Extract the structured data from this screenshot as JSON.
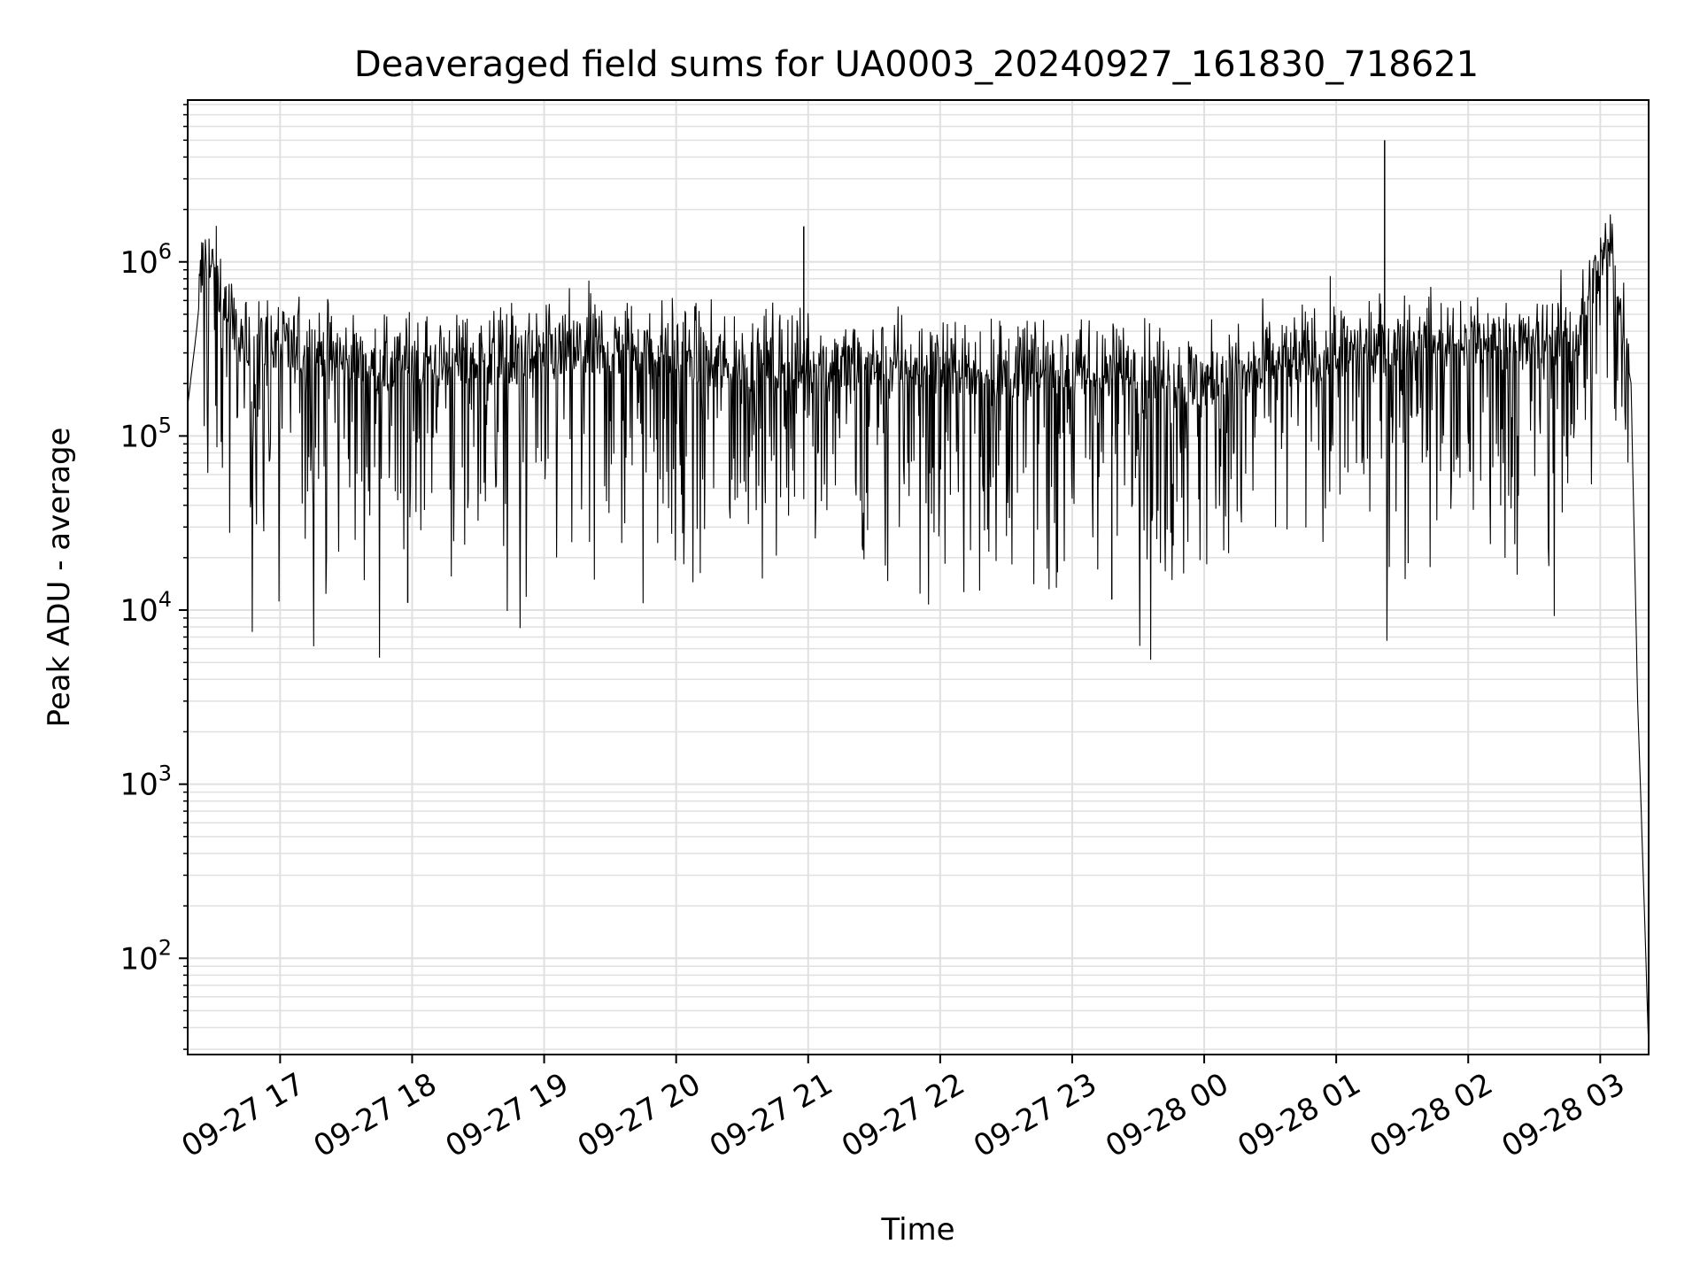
{
  "chart_data": {
    "type": "line",
    "title": "Deaveraged field sums for UA0003_20240927_161830_718621",
    "xlabel": "Time",
    "ylabel": "Peak ADU - average",
    "yscale": "log",
    "xlim": [
      "2024-09-27 16:18",
      "2024-09-28 03:22"
    ],
    "ylim": [
      28,
      8500000
    ],
    "grid": true,
    "line_color": "#000000",
    "grid_color": "#e0e0e0",
    "x_ticks": [
      "09-27 17",
      "09-27 18",
      "09-27 19",
      "09-27 20",
      "09-27 21",
      "09-27 22",
      "09-27 23",
      "09-28 00",
      "09-28 01",
      "09-28 02",
      "09-28 03"
    ],
    "y_ticks": [
      {
        "base": "10",
        "exp": "2"
      },
      {
        "base": "10",
        "exp": "3"
      },
      {
        "base": "10",
        "exp": "4"
      },
      {
        "base": "10",
        "exp": "5"
      },
      {
        "base": "10",
        "exp": "6"
      }
    ],
    "series": [
      {
        "x": [
          "2024-09-27 16:18",
          "2024-09-27 16:22",
          "2024-09-27 16:25",
          "2024-09-27 16:30",
          "2024-09-27 16:35",
          "2024-09-27 16:40",
          "2024-09-27 16:45",
          "2024-09-27 16:50",
          "2024-09-27 17:00",
          "2024-09-27 17:15",
          "2024-09-27 17:30",
          "2024-09-27 17:45",
          "2024-09-27 18:00",
          "2024-09-27 18:30",
          "2024-09-27 19:00",
          "2024-09-27 19:30",
          "2024-09-27 20:00",
          "2024-09-27 20:30",
          "2024-09-27 21:00",
          "2024-09-27 21:30",
          "2024-09-27 22:00",
          "2024-09-27 22:30",
          "2024-09-27 23:00",
          "2024-09-27 23:30",
          "2024-09-28 00:00",
          "2024-09-28 00:30",
          "2024-09-28 01:00",
          "2024-09-28 01:30",
          "2024-09-28 02:00",
          "2024-09-28 02:30",
          "2024-09-28 02:50",
          "2024-09-28 03:00",
          "2024-09-28 03:05",
          "2024-09-28 03:10",
          "2024-09-28 03:14",
          "2024-09-28 03:17",
          "2024-09-28 03:20",
          "2024-09-28 03:22"
        ],
        "y": [
          150000,
          400000,
          1000000,
          800000,
          500000,
          350000,
          280000,
          300000,
          300000,
          280000,
          250000,
          230000,
          240000,
          250000,
          260000,
          300000,
          260000,
          230000,
          240000,
          230000,
          220000,
          210000,
          220000,
          210000,
          190000,
          230000,
          280000,
          300000,
          320000,
          300000,
          350000,
          900000,
          1200000,
          400000,
          200000,
          3000,
          200,
          30
        ]
      }
    ],
    "spikes": [
      {
        "x": "2024-09-27 20:58",
        "y": 1600000
      },
      {
        "x": "2024-09-28 01:22",
        "y": 5000000
      },
      {
        "x": "2024-09-27 17:58",
        "y": 11000
      },
      {
        "x": "2024-09-27 23:18",
        "y": 11500
      }
    ]
  }
}
